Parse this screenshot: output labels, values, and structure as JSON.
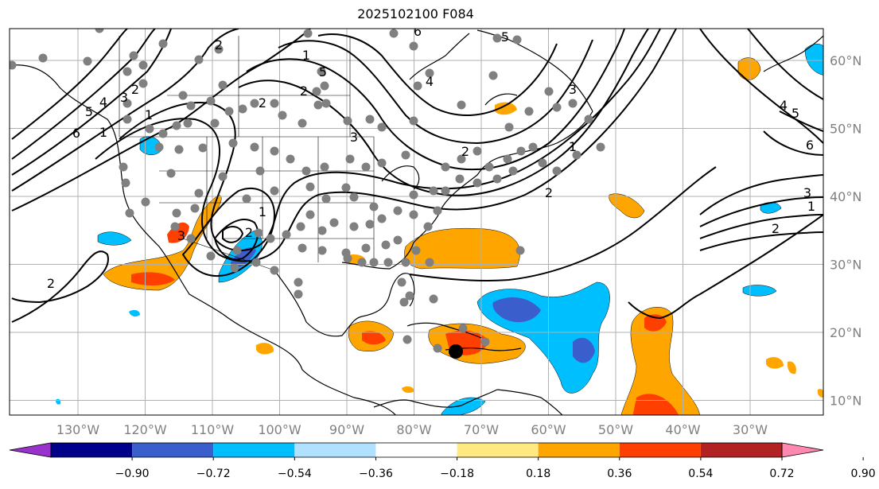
{
  "title": "2025102100 F084",
  "map": {
    "grid_lon": [
      -130,
      -120,
      -110,
      -100,
      -90,
      -80,
      -70,
      -60,
      -50,
      -40,
      -30
    ],
    "grid_lat": [
      60,
      50,
      40,
      30,
      20,
      10
    ],
    "lon_labels": [
      "130°W",
      "120°W",
      "110°W",
      "100°W",
      "90°W",
      "80°W",
      "70°W",
      "60°W",
      "50°W",
      "40°W",
      "30°W"
    ],
    "lat_labels": [
      "60°N",
      "50°N",
      "40°N",
      "30°N",
      "20°N",
      "10°N"
    ],
    "contour_labels": [
      "6",
      "5",
      "4",
      "3",
      "2",
      "1",
      "1",
      "2",
      "3",
      "2",
      "1",
      "2",
      "5",
      "4",
      "6",
      "1",
      "2",
      "2",
      "3",
      "2",
      "2",
      "1",
      "5",
      "3",
      "4",
      "5",
      "6",
      "3",
      "2",
      "1"
    ],
    "colors": {
      "land": "#ffffff",
      "coast": "#000000",
      "grid": "#b0b0b0",
      "station": "#808080",
      "storm": "#000000"
    }
  },
  "colorbar": {
    "ticks": [
      "−0.90",
      "−0.72",
      "−0.54",
      "−0.36",
      "−0.18",
      "0.18",
      "0.36",
      "0.54",
      "0.72",
      "0.90"
    ],
    "colors": [
      "#9932cc",
      "#00008b",
      "#3a5fcd",
      "#00bfff",
      "#b0e2ff",
      "#ffffff",
      "#ffe980",
      "#ffa500",
      "#ff3f00",
      "#b22222",
      "#ff88b0"
    ]
  }
}
